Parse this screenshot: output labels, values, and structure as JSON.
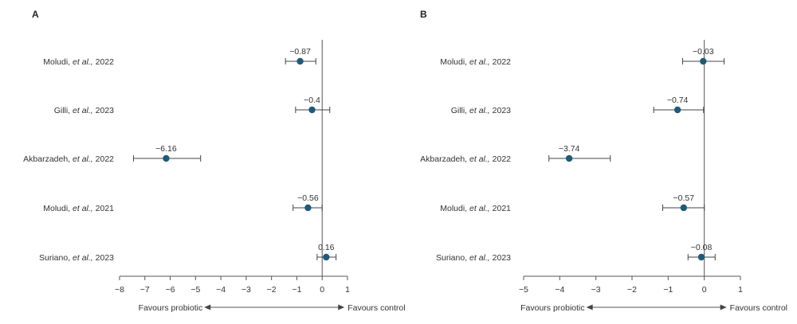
{
  "chart_data": [
    {
      "type": "forest",
      "panel": "A",
      "xlim": [
        -8,
        1
      ],
      "ticks": [
        -8,
        -7,
        -6,
        -5,
        -4,
        -3,
        -2,
        -1,
        0,
        1
      ],
      "tick_labels": [
        "−8",
        "−7",
        "−6",
        "−5",
        "−4",
        "−3",
        "−2",
        "−1",
        "0",
        "1"
      ],
      "left_direction": "Favours probiotic",
      "right_direction": "Favours control",
      "studies": [
        {
          "author": "Moludi,",
          "etal": "et al.,",
          "year": "2022",
          "value": -0.87,
          "value_label": "−0.87",
          "lower": -1.45,
          "upper": -0.25
        },
        {
          "author": "Gilli,",
          "etal": "et al.,",
          "year": "2023",
          "value": -0.4,
          "value_label": "−0.4",
          "lower": -1.05,
          "upper": 0.3
        },
        {
          "author": "Akbarzadeh,",
          "etal": "et al.,",
          "year": "2022",
          "value": -6.16,
          "value_label": "−6.16",
          "lower": -7.45,
          "upper": -4.8
        },
        {
          "author": "Moludi,",
          "etal": "et al.,",
          "year": "2021",
          "value": -0.56,
          "value_label": "−0.56",
          "lower": -1.15,
          "upper": 0.0
        },
        {
          "author": "Suriano,",
          "etal": "et al.,",
          "year": "2023",
          "value": 0.16,
          "value_label": "0.16",
          "lower": -0.2,
          "upper": 0.55
        }
      ]
    },
    {
      "type": "forest",
      "panel": "B",
      "xlim": [
        -5,
        1
      ],
      "ticks": [
        -5,
        -4,
        -3,
        -2,
        -1,
        0,
        1
      ],
      "tick_labels": [
        "−5",
        "−4",
        "−3",
        "−2",
        "−1",
        "0",
        "1"
      ],
      "left_direction": "Favours probiotic",
      "right_direction": "Favours control",
      "studies": [
        {
          "author": "Moludi,",
          "etal": "et al.,",
          "year": "2022",
          "value": -0.03,
          "value_label": "−0.03",
          "lower": -0.6,
          "upper": 0.55
        },
        {
          "author": "Gilli,",
          "etal": "et al.,",
          "year": "2023",
          "value": -0.74,
          "value_label": "−0.74",
          "lower": -1.4,
          "upper": -0.02
        },
        {
          "author": "Akbarzadeh,",
          "etal": "et al.,",
          "year": "2022",
          "value": -3.74,
          "value_label": "−3.74",
          "lower": -4.3,
          "upper": -2.6
        },
        {
          "author": "Moludi,",
          "etal": "et al.,",
          "year": "2021",
          "value": -0.57,
          "value_label": "−0.57",
          "lower": -1.15,
          "upper": 0.0
        },
        {
          "author": "Suriano,",
          "etal": "et al.,",
          "year": "2023",
          "value": -0.08,
          "value_label": "−0.08",
          "lower": -0.45,
          "upper": 0.3
        }
      ]
    }
  ]
}
